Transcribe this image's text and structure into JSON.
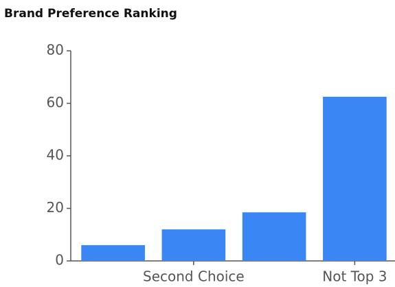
{
  "chart_data": {
    "type": "bar",
    "title": "Brand Preference Ranking",
    "categories": [
      null,
      "Second Choice",
      null,
      "Not Top 3"
    ],
    "values": [
      6,
      12,
      18.5,
      62.5
    ],
    "color": "#3b86f5",
    "ylim": [
      0,
      80
    ],
    "yticks": [
      0,
      20,
      40,
      60,
      80
    ],
    "grid": false
  }
}
